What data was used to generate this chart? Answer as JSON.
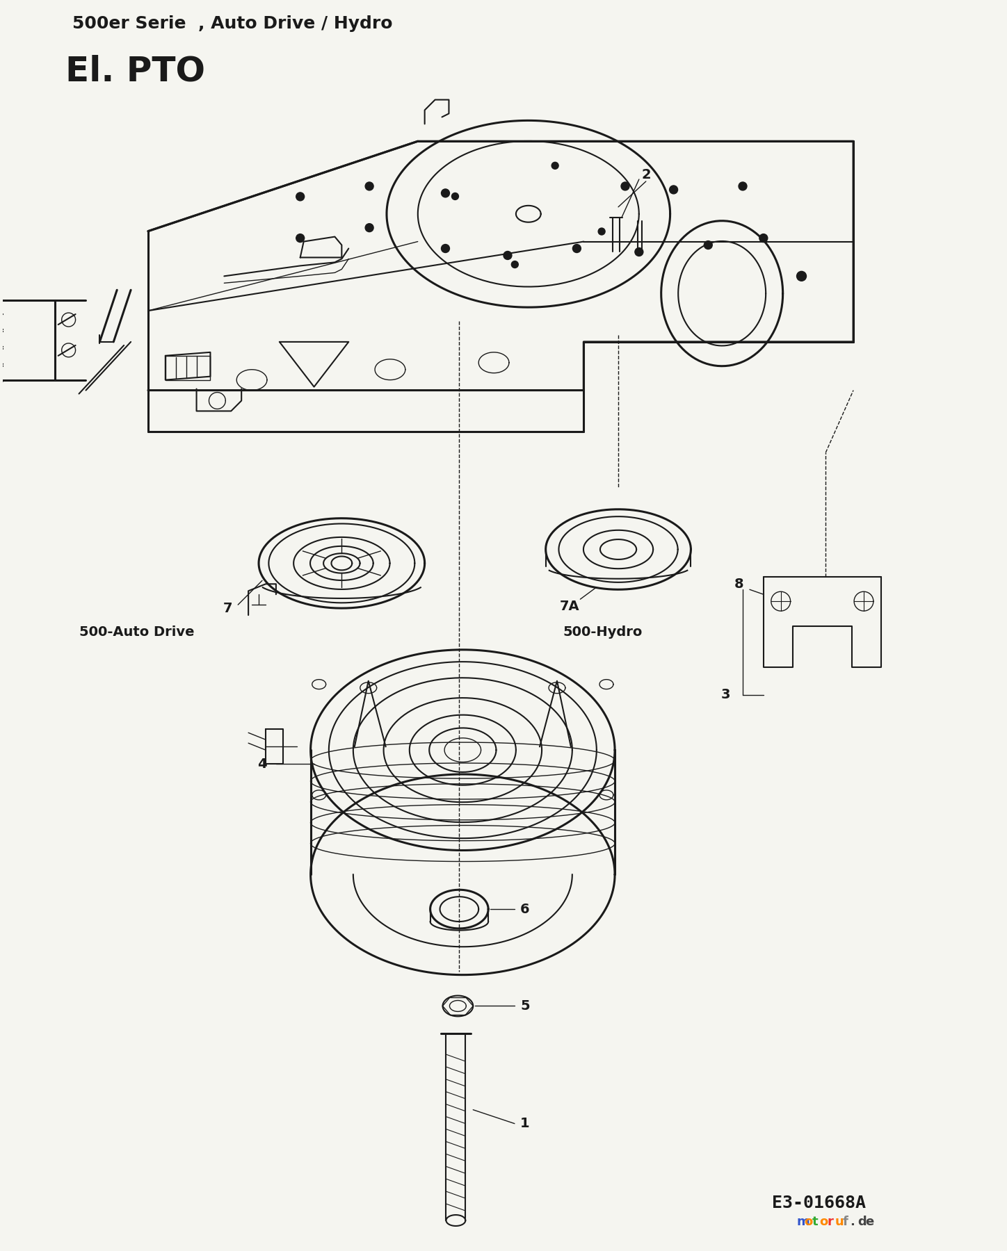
{
  "bg": "#f5f5f0",
  "black": "#1a1a1a",
  "title1": "500er Serie  , Auto Drive / Hydro",
  "title2": "El. PTO",
  "part_code": "E3-01668A",
  "figsize": [
    14.48,
    18.0
  ],
  "dpi": 100
}
